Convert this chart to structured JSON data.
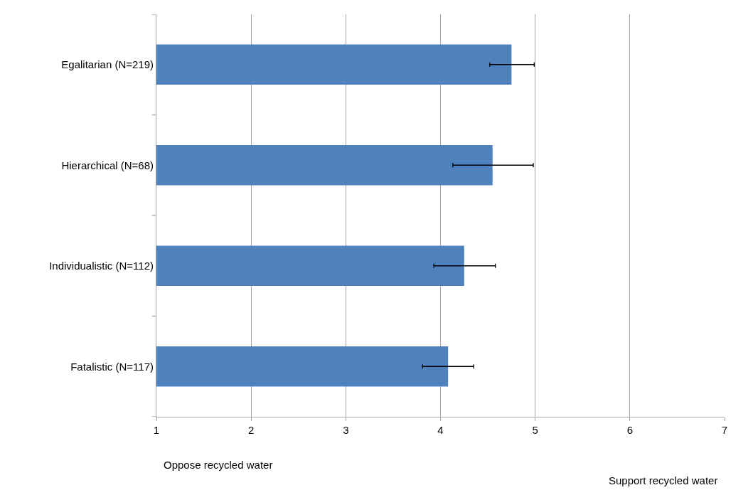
{
  "chart_data": {
    "type": "bar",
    "orientation": "horizontal",
    "categories": [
      "Egalitarian (N=219)",
      "Hierarchical (N=68)",
      "Individualistic (N=112)",
      "Fatalistic (N=117)"
    ],
    "values": [
      4.75,
      4.55,
      4.25,
      4.08
    ],
    "errors": [
      [
        4.52,
        4.99
      ],
      [
        4.13,
        4.98
      ],
      [
        3.93,
        4.58
      ],
      [
        3.81,
        4.35
      ]
    ],
    "color": "#4f81bd",
    "xlim": [
      1,
      7
    ],
    "xticks": [
      1,
      2,
      3,
      4,
      5,
      6,
      7
    ],
    "grid": "x",
    "annotations": [
      "Oppose recycled water",
      "Support recycled water"
    ]
  }
}
